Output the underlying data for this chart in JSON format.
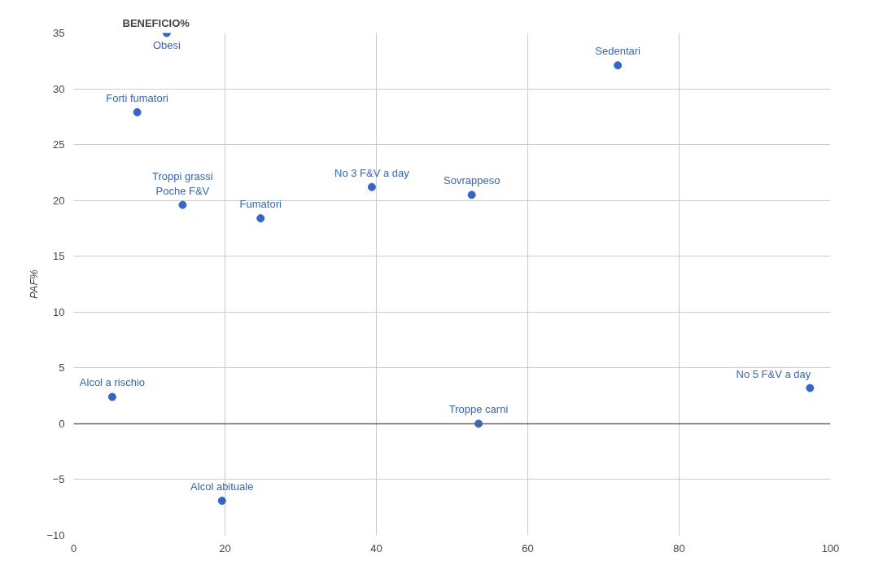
{
  "chart_data": {
    "type": "scatter",
    "title": "BENEFICIO%",
    "ylabel": "PAF%",
    "x": [
      12.3,
      8.4,
      14.4,
      24.7,
      39.4,
      52.6,
      71.9,
      5.1,
      53.5,
      97.3,
      19.6
    ],
    "series": [
      {
        "color": "#3366cc",
        "values": [
          35,
          27.9,
          19.6,
          18.4,
          21.2,
          20.5,
          32.1,
          2.4,
          0,
          3.2,
          -6.9
        ]
      }
    ],
    "annotations": [
      {
        "text": "Obesi",
        "x": 12.3,
        "y": 35
      },
      {
        "text": "Forti fumatori",
        "x": 8.4,
        "y": 27.9
      },
      {
        "text": "Poche F&V",
        "x": 14.4,
        "y": 19.6
      },
      {
        "text": "Troppi grassi",
        "x": 14.4,
        "y": 19.6
      },
      {
        "text": "Fumatori",
        "x": 24.7,
        "y": 18.4
      },
      {
        "text": "No 3 F&V a day",
        "x": 39.4,
        "y": 21.2
      },
      {
        "text": "Sovrappeso",
        "x": 52.6,
        "y": 20.5
      },
      {
        "text": "Sedentari",
        "x": 71.9,
        "y": 32.1
      },
      {
        "text": "Alcol a rischio",
        "x": 5.1,
        "y": 2.4
      },
      {
        "text": "Troppe carni",
        "x": 53.5,
        "y": 0
      },
      {
        "text": "No 5 F&V a day",
        "x": 97.3,
        "y": 3.2
      },
      {
        "text": "Alcol abituale",
        "x": 19.6,
        "y": -6.9
      }
    ],
    "xlim": [
      0,
      100
    ],
    "xticks": [
      0,
      20,
      40,
      60,
      80,
      100
    ],
    "ylim": [
      -10,
      35
    ],
    "yticks": [
      -10,
      -5,
      0,
      5,
      10,
      15,
      20,
      25,
      30,
      35
    ],
    "ref_lines": [
      {
        "axis": "y",
        "value": 0,
        "color": "#666666"
      }
    ],
    "grid": true,
    "marker": "circle"
  }
}
